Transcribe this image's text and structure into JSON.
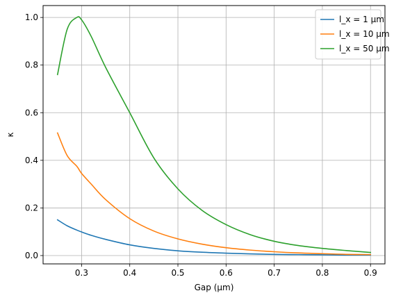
{
  "chart_data": {
    "type": "line",
    "title": "",
    "xlabel": "Gap (μm)",
    "ylabel": "κ",
    "xlim": [
      0.22,
      0.93
    ],
    "ylim": [
      -0.035,
      1.05
    ],
    "xticks": [
      0.3,
      0.4,
      0.5,
      0.6,
      0.7,
      0.8,
      0.9
    ],
    "xtick_labels": [
      "0.3",
      "0.4",
      "0.5",
      "0.6",
      "0.7",
      "0.8",
      "0.9"
    ],
    "yticks": [
      0.0,
      0.2,
      0.4,
      0.6,
      0.8,
      1.0
    ],
    "ytick_labels": [
      "0.0",
      "0.2",
      "0.4",
      "0.6",
      "0.8",
      "1.0"
    ],
    "grid": true,
    "legend_position": "top-right",
    "x": [
      0.25,
      0.27,
      0.29,
      0.3,
      0.32,
      0.35,
      0.4,
      0.45,
      0.5,
      0.55,
      0.6,
      0.65,
      0.7,
      0.75,
      0.8,
      0.85,
      0.9
    ],
    "series": [
      {
        "name": "l_x = 1 μm",
        "color": "#1f77b4",
        "values": [
          0.15,
          0.125,
          0.107,
          0.099,
          0.085,
          0.068,
          0.045,
          0.03,
          0.02,
          0.014,
          0.01,
          0.007,
          0.005,
          0.004,
          0.003,
          0.002,
          0.002
        ]
      },
      {
        "name": "l_x = 10 μm",
        "color": "#ff7f0e",
        "values": [
          0.515,
          0.42,
          0.375,
          0.345,
          0.3,
          0.235,
          0.155,
          0.103,
          0.07,
          0.048,
          0.033,
          0.023,
          0.016,
          0.011,
          0.008,
          0.005,
          0.004
        ]
      },
      {
        "name": "l_x = 50 μm",
        "color": "#2ca02c",
        "values": [
          0.76,
          0.95,
          1.0,
          0.99,
          0.92,
          0.79,
          0.6,
          0.41,
          0.28,
          0.19,
          0.13,
          0.088,
          0.06,
          0.042,
          0.03,
          0.021,
          0.013
        ]
      }
    ]
  }
}
